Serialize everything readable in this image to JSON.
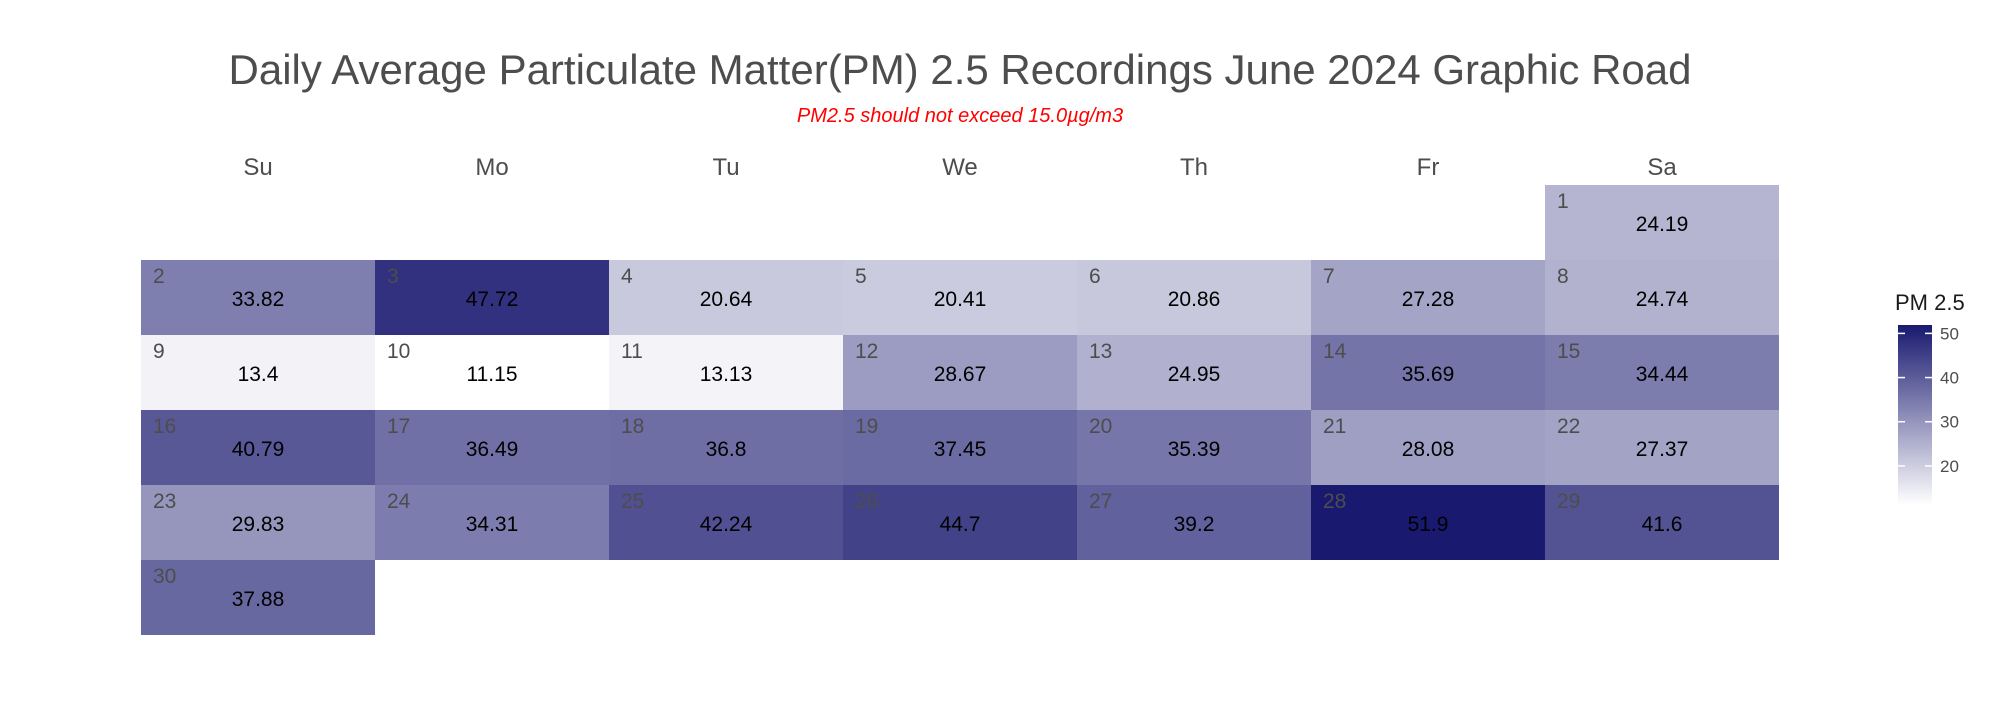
{
  "chart_data": {
    "type": "heatmap",
    "title": "Daily Average Particulate Matter(PM) 2.5 Recordings June 2024 Graphic Road",
    "subtitle": "PM2.5 should not exceed 15.0µg/m3",
    "weekdays": [
      "Su",
      "Mo",
      "Tu",
      "We",
      "Th",
      "Fr",
      "Sa"
    ],
    "days": [
      {
        "day": 1,
        "value": 24.19
      },
      {
        "day": 2,
        "value": 33.82
      },
      {
        "day": 3,
        "value": 47.72
      },
      {
        "day": 4,
        "value": 20.64
      },
      {
        "day": 5,
        "value": 20.41
      },
      {
        "day": 6,
        "value": 20.86
      },
      {
        "day": 7,
        "value": 27.28
      },
      {
        "day": 8,
        "value": 24.74
      },
      {
        "day": 9,
        "value": 13.4
      },
      {
        "day": 10,
        "value": 11.15
      },
      {
        "day": 11,
        "value": 13.13
      },
      {
        "day": 12,
        "value": 28.67
      },
      {
        "day": 13,
        "value": 24.95
      },
      {
        "day": 14,
        "value": 35.69
      },
      {
        "day": 15,
        "value": 34.44
      },
      {
        "day": 16,
        "value": 40.79
      },
      {
        "day": 17,
        "value": 36.49
      },
      {
        "day": 18,
        "value": 36.8
      },
      {
        "day": 19,
        "value": 37.45
      },
      {
        "day": 20,
        "value": 35.39
      },
      {
        "day": 21,
        "value": 28.08
      },
      {
        "day": 22,
        "value": 27.37
      },
      {
        "day": 23,
        "value": 29.83
      },
      {
        "day": 24,
        "value": 34.31
      },
      {
        "day": 25,
        "value": 42.24
      },
      {
        "day": 26,
        "value": 44.7
      },
      {
        "day": 27,
        "value": 39.2
      },
      {
        "day": 28,
        "value": 51.9
      },
      {
        "day": 29,
        "value": 41.6
      },
      {
        "day": 30,
        "value": 37.88
      }
    ],
    "first_weekday_index": 6,
    "color_scale": {
      "low": "#ffffff",
      "high": "#191970",
      "min": 11.15,
      "max": 51.9
    },
    "legend": {
      "title": "PM 2.5",
      "ticks": [
        20,
        30,
        40,
        50
      ],
      "position": "right"
    }
  }
}
